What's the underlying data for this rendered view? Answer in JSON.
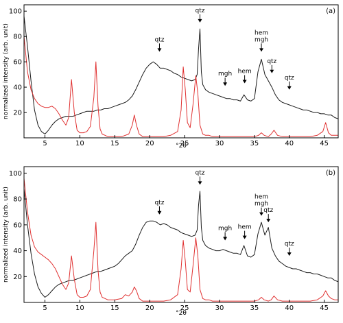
{
  "colors": {
    "measured_series": "#1a1a1a",
    "reference_series": "#e03030",
    "axis": "#000000",
    "background": "#ffffff"
  },
  "chart_data": [
    {
      "type": "line",
      "panel_label": "(a)",
      "xlabel": "°2θ",
      "ylabel": "normalized intensity (arb. unit)",
      "xlim": [
        2,
        47
      ],
      "ylim": [
        0,
        105
      ],
      "xticks": [
        5,
        10,
        15,
        20,
        25,
        30,
        35,
        40,
        45
      ],
      "yticks": [
        20,
        40,
        60,
        80,
        100
      ],
      "grid": false,
      "annotations": [
        {
          "text": "qtz",
          "x": 21.4,
          "y": 68
        },
        {
          "text": "qtz",
          "x": 27.2,
          "y": 91
        },
        {
          "text": "mgh",
          "x": 30.8,
          "y": 41
        },
        {
          "text": "hem",
          "x": 33.6,
          "y": 43
        },
        {
          "text": "hem\nmgh",
          "x": 36.0,
          "y": 68
        },
        {
          "text": "qtz",
          "x": 37.5,
          "y": 51
        },
        {
          "text": "qtz",
          "x": 40.0,
          "y": 38
        }
      ],
      "series": [
        {
          "color_key": "measured_series",
          "x": [
            2.0,
            2.5,
            3.0,
            3.5,
            4.0,
            4.5,
            5.0,
            5.5,
            6.0,
            6.5,
            7.0,
            7.5,
            8.0,
            8.5,
            9.0,
            9.5,
            10.0,
            10.5,
            11.0,
            11.5,
            12.0,
            12.5,
            13.0,
            13.5,
            14.0,
            14.5,
            15.0,
            15.5,
            16.0,
            16.5,
            17.0,
            17.5,
            18.0,
            18.5,
            19.0,
            19.5,
            20.0,
            20.5,
            21.0,
            21.5,
            22.0,
            22.5,
            23.0,
            23.5,
            24.0,
            24.5,
            25.0,
            25.5,
            26.0,
            26.5,
            26.8,
            27.0,
            27.2,
            27.4,
            27.6,
            28.0,
            28.5,
            29.0,
            29.5,
            30.0,
            30.5,
            31.0,
            31.5,
            32.0,
            32.5,
            33.0,
            33.5,
            34.0,
            34.5,
            35.0,
            35.5,
            36.0,
            36.5,
            37.0,
            37.5,
            38.0,
            38.5,
            39.0,
            39.5,
            40.0,
            40.5,
            41.0,
            41.5,
            42.0,
            42.5,
            43.0,
            43.5,
            44.0,
            44.5,
            45.0,
            45.5,
            46.0,
            46.5,
            47.0
          ],
          "y": [
            96,
            72,
            45,
            22,
            10,
            5,
            3,
            6,
            10,
            13,
            15,
            16,
            17,
            17,
            17,
            18,
            19,
            20,
            21,
            21,
            21,
            22,
            22,
            23,
            23,
            24,
            25,
            26,
            27,
            28,
            30,
            33,
            38,
            44,
            50,
            55,
            58,
            60,
            58,
            55,
            55,
            54,
            53,
            51,
            50,
            48,
            47,
            46,
            45,
            46,
            50,
            70,
            86,
            52,
            42,
            38,
            36,
            35,
            34,
            33,
            32,
            31,
            31,
            30,
            30,
            29,
            34,
            30,
            29,
            31,
            52,
            62,
            50,
            45,
            40,
            34,
            30,
            28,
            27,
            26,
            25,
            24,
            23,
            22,
            22,
            21,
            20,
            20,
            19,
            19,
            18,
            18,
            16,
            15
          ]
        },
        {
          "color_key": "reference_series",
          "x": [
            2.0,
            2.5,
            3.0,
            3.5,
            4.0,
            4.5,
            5.0,
            5.5,
            6.0,
            6.5,
            7.0,
            7.5,
            8.0,
            8.4,
            8.8,
            9.2,
            9.6,
            10.0,
            10.5,
            11.0,
            11.5,
            12.0,
            12.3,
            12.6,
            12.9,
            13.2,
            13.6,
            14.0,
            15.0,
            16.0,
            17.0,
            17.5,
            17.8,
            18.1,
            18.5,
            19.0,
            20.0,
            21.0,
            22.0,
            23.0,
            24.0,
            24.5,
            24.8,
            25.1,
            25.4,
            25.8,
            26.2,
            26.6,
            26.9,
            27.2,
            27.6,
            28.0,
            28.5,
            29.0,
            30.0,
            31.0,
            32.0,
            33.0,
            34.0,
            35.0,
            35.6,
            36.0,
            36.4,
            37.0,
            37.4,
            37.8,
            38.3,
            39.0,
            40.0,
            41.0,
            42.0,
            43.0,
            44.0,
            44.8,
            45.2,
            45.6,
            46.0,
            46.5,
            47.0
          ],
          "y": [
            80,
            52,
            38,
            31,
            27,
            25,
            24,
            24,
            25,
            23,
            19,
            14,
            10,
            16,
            46,
            20,
            6,
            4,
            4,
            5,
            9,
            32,
            60,
            25,
            7,
            3,
            2,
            1,
            1,
            1,
            3,
            10,
            18,
            10,
            3,
            1,
            1,
            1,
            1,
            2,
            5,
            22,
            56,
            38,
            12,
            8,
            26,
            49,
            35,
            10,
            3,
            2,
            2,
            1,
            1,
            1,
            1,
            1,
            1,
            1,
            2,
            4,
            2,
            1,
            3,
            6,
            2,
            1,
            1,
            1,
            1,
            1,
            2,
            5,
            12,
            4,
            2,
            2,
            2
          ]
        }
      ]
    },
    {
      "type": "line",
      "panel_label": "(b)",
      "xlabel": "°2θ",
      "ylabel": "normalized intensity (arb. unit)",
      "xlim": [
        2,
        47
      ],
      "ylim": [
        0,
        105
      ],
      "xticks": [
        5,
        10,
        15,
        20,
        25,
        30,
        35,
        40,
        45
      ],
      "yticks": [
        20,
        40,
        60,
        80,
        100
      ],
      "grid": false,
      "annotations": [
        {
          "text": "qtz",
          "x": 21.4,
          "y": 68
        },
        {
          "text": "qtz",
          "x": 27.2,
          "y": 91
        },
        {
          "text": "mgh",
          "x": 30.8,
          "y": 48
        },
        {
          "text": "hem",
          "x": 33.6,
          "y": 49
        },
        {
          "text": "hem\nmgh",
          "x": 36.0,
          "y": 67
        },
        {
          "text": "qtz",
          "x": 37.0,
          "y": 62
        },
        {
          "text": "qtz",
          "x": 40.0,
          "y": 36
        }
      ],
      "series": [
        {
          "color_key": "measured_series",
          "x": [
            2.0,
            2.5,
            3.0,
            3.5,
            4.0,
            4.5,
            5.0,
            5.5,
            6.0,
            6.5,
            7.0,
            7.5,
            8.0,
            8.5,
            9.0,
            9.5,
            10.0,
            10.5,
            11.0,
            11.5,
            12.0,
            12.5,
            13.0,
            13.5,
            14.0,
            14.5,
            15.0,
            15.5,
            16.0,
            16.5,
            17.0,
            17.5,
            18.0,
            18.5,
            19.0,
            19.5,
            20.0,
            20.5,
            21.0,
            21.5,
            22.0,
            22.5,
            23.0,
            23.5,
            24.0,
            24.5,
            25.0,
            25.5,
            26.0,
            26.5,
            26.8,
            27.0,
            27.2,
            27.4,
            27.6,
            28.0,
            28.5,
            29.0,
            29.5,
            30.0,
            30.5,
            31.0,
            31.5,
            32.0,
            32.5,
            33.0,
            33.5,
            34.0,
            34.5,
            35.0,
            35.5,
            36.0,
            36.5,
            37.0,
            37.5,
            38.0,
            38.5,
            39.0,
            39.5,
            40.0,
            40.5,
            41.0,
            41.5,
            42.0,
            42.5,
            43.0,
            43.5,
            44.0,
            44.5,
            45.0,
            45.5,
            46.0,
            46.5,
            47.0
          ],
          "y": [
            88,
            60,
            38,
            22,
            12,
            7,
            4,
            6,
            9,
            12,
            14,
            15,
            16,
            17,
            17,
            18,
            19,
            20,
            21,
            22,
            23,
            24,
            24,
            25,
            26,
            27,
            28,
            30,
            33,
            36,
            38,
            40,
            45,
            52,
            58,
            62,
            63,
            63,
            62,
            60,
            61,
            60,
            58,
            57,
            56,
            54,
            53,
            52,
            51,
            52,
            56,
            75,
            86,
            58,
            48,
            44,
            42,
            41,
            40,
            40,
            41,
            40,
            39,
            38,
            38,
            37,
            44,
            36,
            35,
            37,
            53,
            62,
            52,
            58,
            42,
            36,
            32,
            30,
            28,
            27,
            26,
            26,
            25,
            24,
            23,
            23,
            22,
            22,
            21,
            20,
            19,
            19,
            17,
            16
          ]
        },
        {
          "color_key": "reference_series",
          "x": [
            2.0,
            2.5,
            3.0,
            3.5,
            4.0,
            4.5,
            5.0,
            5.5,
            6.0,
            6.5,
            7.0,
            7.5,
            8.0,
            8.4,
            8.8,
            9.2,
            9.6,
            10.0,
            10.5,
            11.0,
            11.5,
            12.0,
            12.3,
            12.6,
            12.9,
            13.2,
            13.6,
            14.0,
            15.0,
            16.0,
            16.5,
            17.0,
            17.5,
            17.8,
            18.1,
            18.5,
            19.0,
            20.0,
            21.0,
            22.0,
            23.0,
            24.0,
            24.5,
            24.8,
            25.1,
            25.4,
            25.8,
            26.2,
            26.6,
            26.9,
            27.2,
            27.6,
            28.0,
            28.5,
            29.0,
            30.0,
            31.0,
            32.0,
            33.0,
            34.0,
            35.0,
            35.6,
            36.0,
            36.4,
            37.0,
            37.4,
            37.8,
            38.3,
            39.0,
            40.0,
            41.0,
            42.0,
            43.0,
            44.0,
            44.8,
            45.2,
            45.6,
            46.0,
            46.5,
            47.0
          ],
          "y": [
            96,
            70,
            52,
            43,
            39,
            37,
            35,
            33,
            30,
            26,
            20,
            14,
            10,
            15,
            36,
            18,
            6,
            4,
            4,
            5,
            10,
            40,
            62,
            25,
            8,
            4,
            3,
            2,
            2,
            3,
            6,
            5,
            8,
            12,
            9,
            3,
            1,
            1,
            1,
            1,
            2,
            6,
            26,
            48,
            32,
            10,
            8,
            28,
            50,
            36,
            10,
            3,
            2,
            2,
            1,
            1,
            1,
            1,
            1,
            1,
            1,
            2,
            4,
            2,
            1,
            2,
            5,
            2,
            1,
            1,
            1,
            1,
            1,
            2,
            5,
            9,
            5,
            3,
            2,
            2
          ]
        }
      ]
    }
  ]
}
